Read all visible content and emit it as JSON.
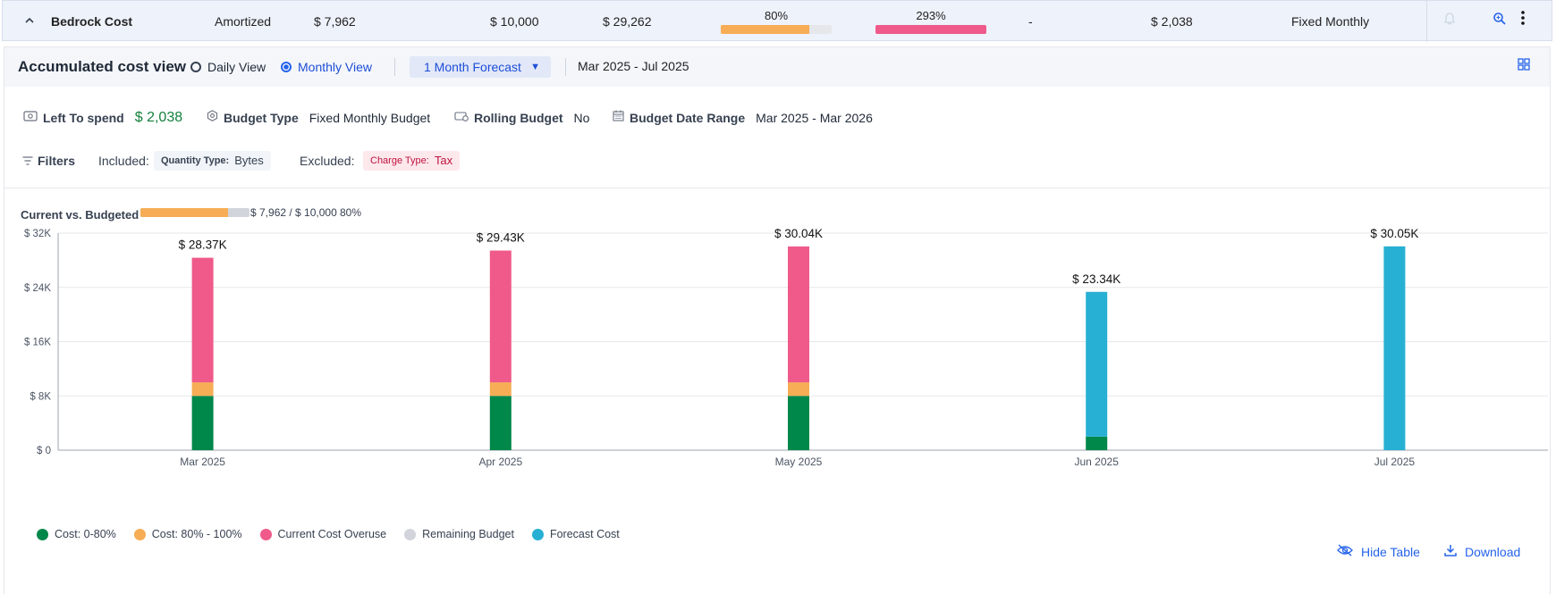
{
  "row": {
    "name": "Bedrock Cost",
    "cost_type": "Amortized",
    "current": "$ 7,962",
    "budget": "$ 10,000",
    "forecast": "$ 29,262",
    "pct_current": "80%",
    "pct_current_value": 80,
    "pct_forecast": "293%",
    "pct_forecast_value": 293,
    "dash": "-",
    "left": "$ 2,038",
    "budget_type": "Fixed Monthly"
  },
  "panel": {
    "title": "Accumulated cost view",
    "daily_label": "Daily View",
    "monthly_label": "Monthly View",
    "forecast_dropdown": "1 Month Forecast",
    "date_range": "Mar 2025 - Jul 2025"
  },
  "info": {
    "left_to_spend_label": "Left To spend",
    "left_to_spend_value": "$ 2,038",
    "budget_type_label": "Budget Type",
    "budget_type_value": "Fixed Monthly Budget",
    "rolling_label": "Rolling Budget",
    "rolling_value": "No",
    "date_range_label": "Budget Date Range",
    "date_range_value": "Mar 2025 - Mar 2026"
  },
  "filters": {
    "title": "Filters",
    "included_label": "Included:",
    "included_key": "Quantity Type:",
    "included_value": "Bytes",
    "excluded_label": "Excluded:",
    "excluded_key": "Charge Type:",
    "excluded_value": "Tax"
  },
  "current_vs_budgeted": {
    "label": "Current vs. Budgeted",
    "values": "$ 7,962 / $ 10,000",
    "pct": "80%",
    "fraction": 0.8
  },
  "chart_data": {
    "type": "bar",
    "stacked": true,
    "categories": [
      "Mar 2025",
      "Apr 2025",
      "May 2025",
      "Jun 2025",
      "Jul 2025"
    ],
    "ylim": [
      0,
      32000
    ],
    "yticks": [
      "$ 0",
      "$ 8K",
      "$ 16K",
      "$ 24K",
      "$ 32K"
    ],
    "ytick_values": [
      0,
      8000,
      16000,
      24000,
      32000
    ],
    "totals_labels": [
      "$ 28.37K",
      "$ 29.43K",
      "$ 30.04K",
      "$ 23.34K",
      "$ 30.05K"
    ],
    "series": [
      {
        "name": "Cost: 0-80%",
        "color": "#00874a",
        "values": [
          8000,
          8000,
          8000,
          2000,
          0
        ]
      },
      {
        "name": "Cost: 80% - 100%",
        "color": "#f6ad55",
        "values": [
          2000,
          2000,
          2000,
          0,
          0
        ]
      },
      {
        "name": "Current Cost Overuse",
        "color": "#ef5a8a",
        "values": [
          18370,
          19430,
          20040,
          0,
          0
        ]
      },
      {
        "name": "Remaining Budget",
        "color": "#d1d5db",
        "values": [
          0,
          0,
          0,
          0,
          0
        ]
      },
      {
        "name": "Forecast Cost",
        "color": "#27b0d3",
        "values": [
          0,
          0,
          0,
          21340,
          30050
        ]
      }
    ],
    "grid": true,
    "legend_position": "bottom-left"
  },
  "actions": {
    "hide_table": "Hide Table",
    "download": "Download"
  },
  "colors": {
    "accent": "#2563eb",
    "money_green": "#15803d",
    "bar_orange": "#f6ad55",
    "bar_pink": "#ef5a8a"
  }
}
